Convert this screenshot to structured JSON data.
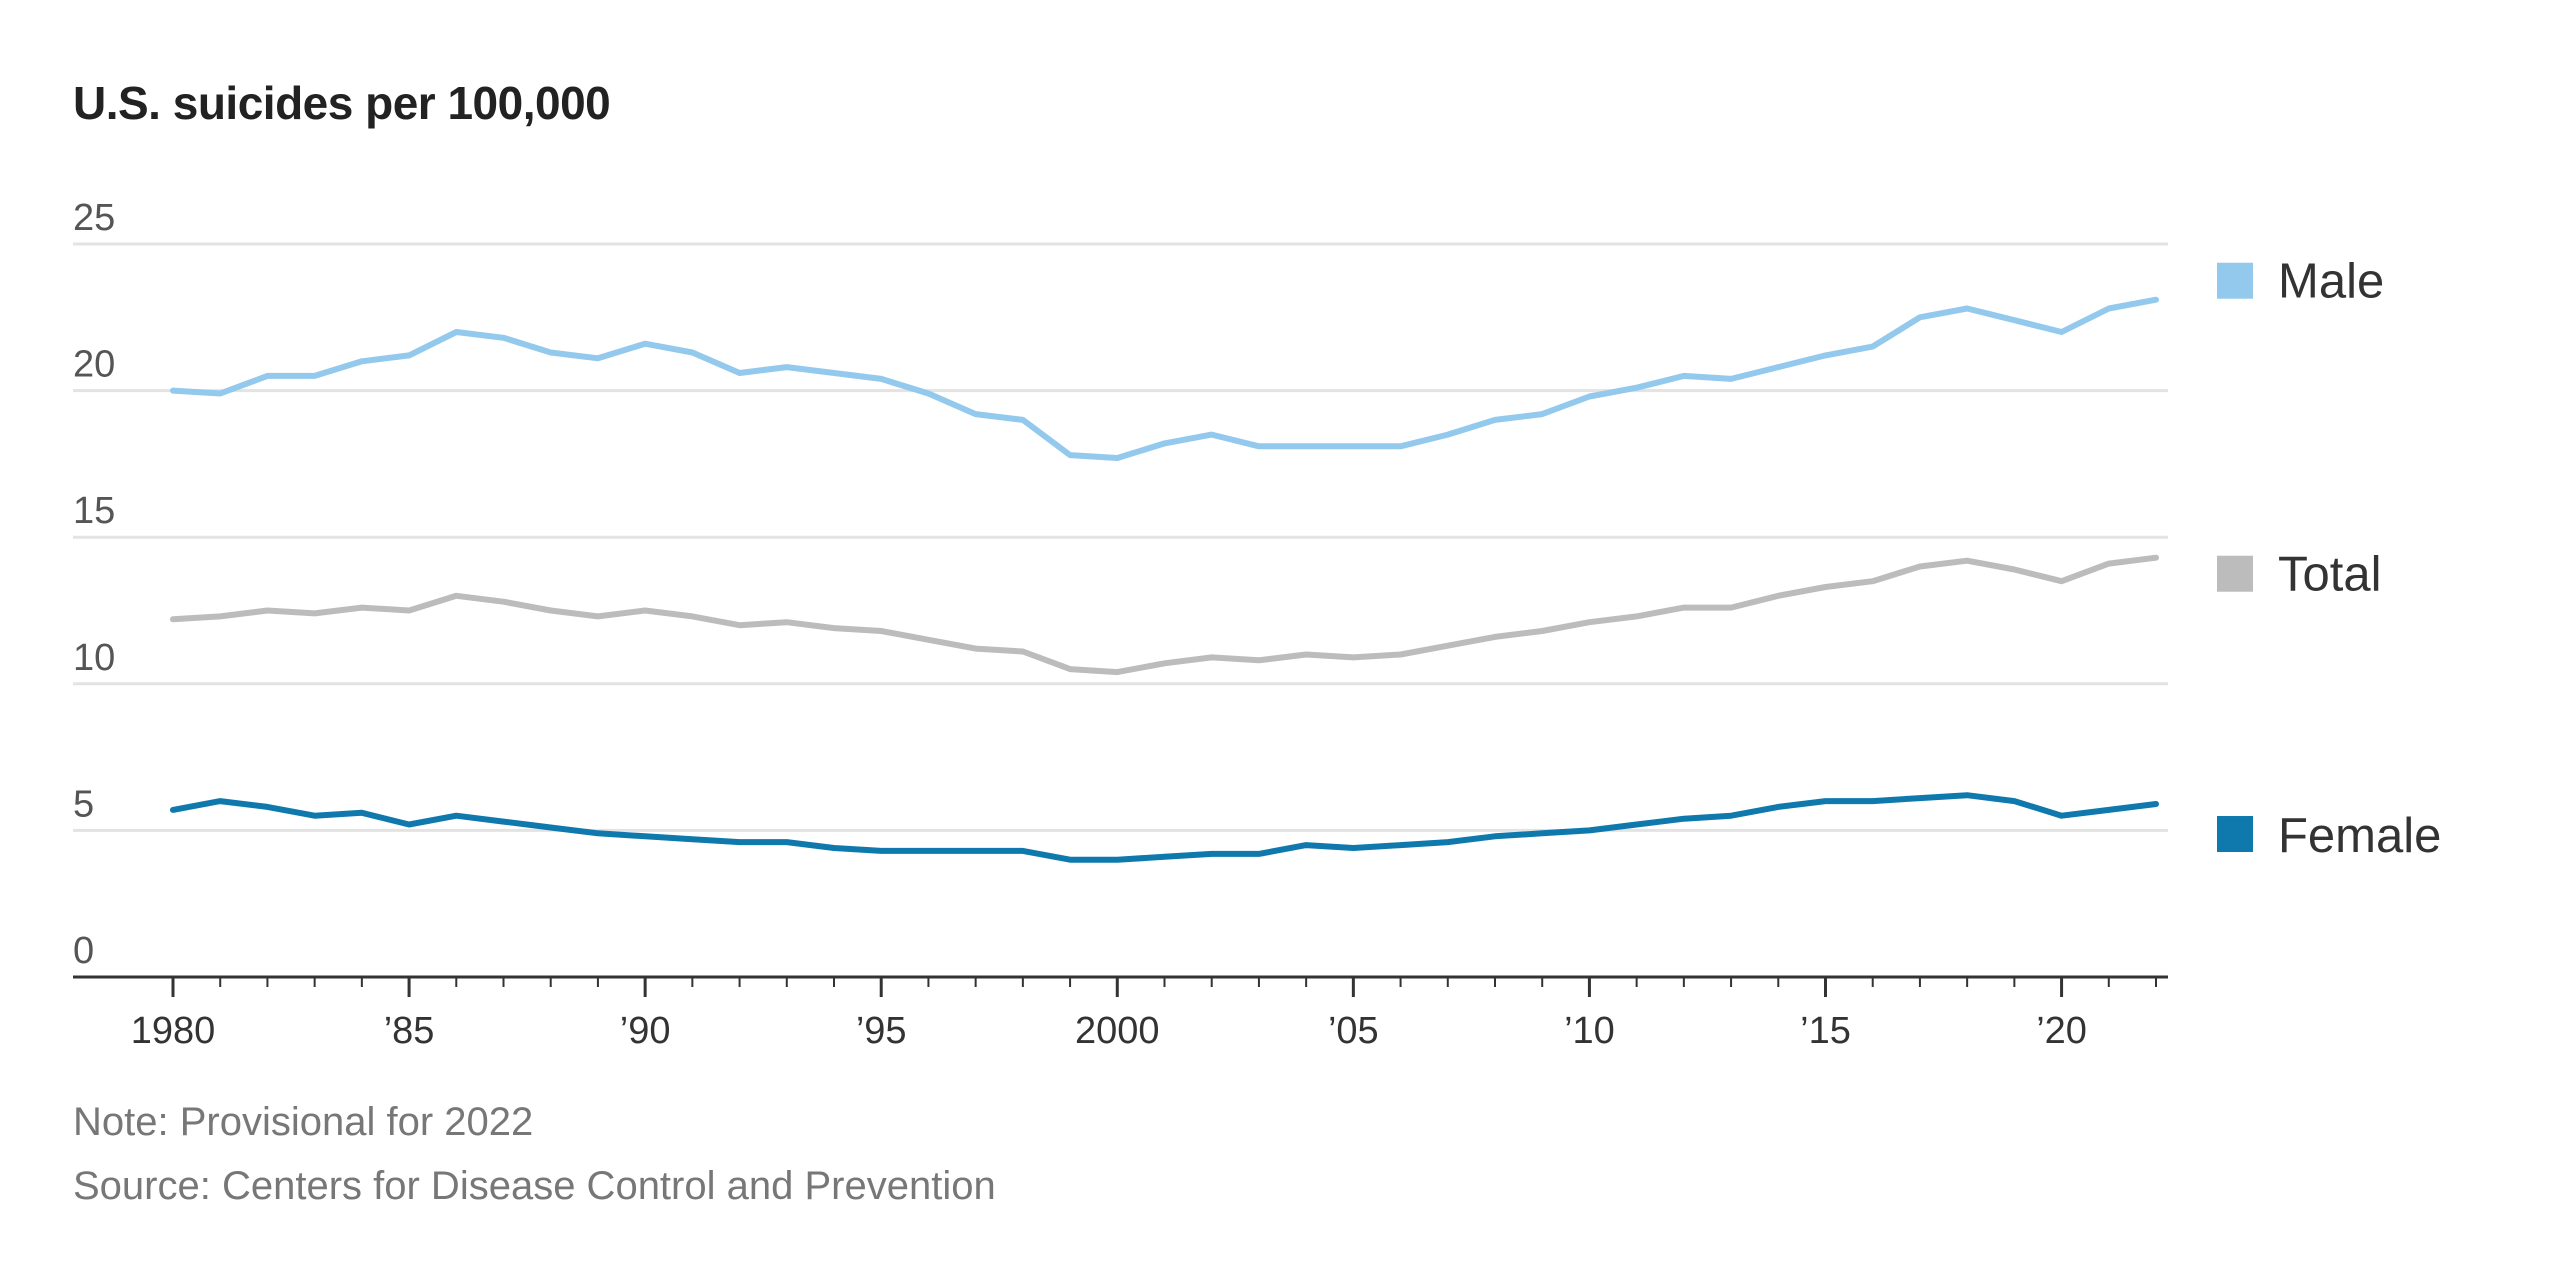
{
  "chart_data": {
    "type": "line",
    "title": "U.S. suicides per 100,000",
    "xlabel": "",
    "ylabel": "",
    "ylim": [
      0,
      25
    ],
    "y_ticks": [
      0,
      5,
      10,
      15,
      20,
      25
    ],
    "x_ticks": [
      {
        "value": 1980,
        "label": "1980"
      },
      {
        "value": 1985,
        "label": "’85"
      },
      {
        "value": 1990,
        "label": "’90"
      },
      {
        "value": 1995,
        "label": "’95"
      },
      {
        "value": 2000,
        "label": "2000"
      },
      {
        "value": 2005,
        "label": "’05"
      },
      {
        "value": 2010,
        "label": "’10"
      },
      {
        "value": 2015,
        "label": "’15"
      },
      {
        "value": 2020,
        "label": "’20"
      }
    ],
    "x": [
      1980,
      1981,
      1982,
      1983,
      1984,
      1985,
      1986,
      1987,
      1988,
      1989,
      1990,
      1991,
      1992,
      1993,
      1994,
      1995,
      1996,
      1997,
      1998,
      1999,
      2000,
      2001,
      2002,
      2003,
      2004,
      2005,
      2006,
      2007,
      2008,
      2009,
      2010,
      2011,
      2012,
      2013,
      2014,
      2015,
      2016,
      2017,
      2018,
      2019,
      2020,
      2021,
      2022
    ],
    "grid": true,
    "legend_position": "right",
    "series": [
      {
        "name": "Male",
        "color": "#93c9ec",
        "values": [
          20.0,
          19.9,
          20.5,
          20.5,
          21.0,
          21.2,
          22.0,
          21.8,
          21.3,
          21.1,
          21.6,
          21.3,
          20.6,
          20.8,
          20.6,
          20.4,
          19.9,
          19.2,
          19.0,
          17.8,
          17.7,
          18.2,
          18.5,
          18.1,
          18.1,
          18.1,
          18.1,
          18.5,
          19.0,
          19.2,
          19.8,
          20.1,
          20.5,
          20.4,
          20.8,
          21.2,
          21.5,
          22.5,
          22.8,
          22.4,
          22.0,
          22.8,
          23.1
        ]
      },
      {
        "name": "Total",
        "color": "#bcbcbc",
        "values": [
          12.2,
          12.3,
          12.5,
          12.4,
          12.6,
          12.5,
          13.0,
          12.8,
          12.5,
          12.3,
          12.5,
          12.3,
          12.0,
          12.1,
          11.9,
          11.8,
          11.5,
          11.2,
          11.1,
          10.5,
          10.4,
          10.7,
          10.9,
          10.8,
          11.0,
          10.9,
          11.0,
          11.3,
          11.6,
          11.8,
          12.1,
          12.3,
          12.6,
          12.6,
          13.0,
          13.3,
          13.5,
          14.0,
          14.2,
          13.9,
          13.5,
          14.1,
          14.3
        ]
      },
      {
        "name": "Female",
        "color": "#0f79ad",
        "values": [
          5.7,
          6.0,
          5.8,
          5.5,
          5.6,
          5.2,
          5.5,
          5.3,
          5.1,
          4.9,
          4.8,
          4.7,
          4.6,
          4.6,
          4.4,
          4.3,
          4.3,
          4.3,
          4.3,
          4.0,
          4.0,
          4.1,
          4.2,
          4.2,
          4.5,
          4.4,
          4.5,
          4.6,
          4.8,
          4.9,
          5.0,
          5.2,
          5.4,
          5.5,
          5.8,
          6.0,
          6.0,
          6.1,
          6.2,
          6.0,
          5.5,
          5.7,
          5.9
        ]
      }
    ]
  },
  "note": "Note: Provisional for 2022",
  "source": "Source: Centers for Disease Control and Prevention"
}
